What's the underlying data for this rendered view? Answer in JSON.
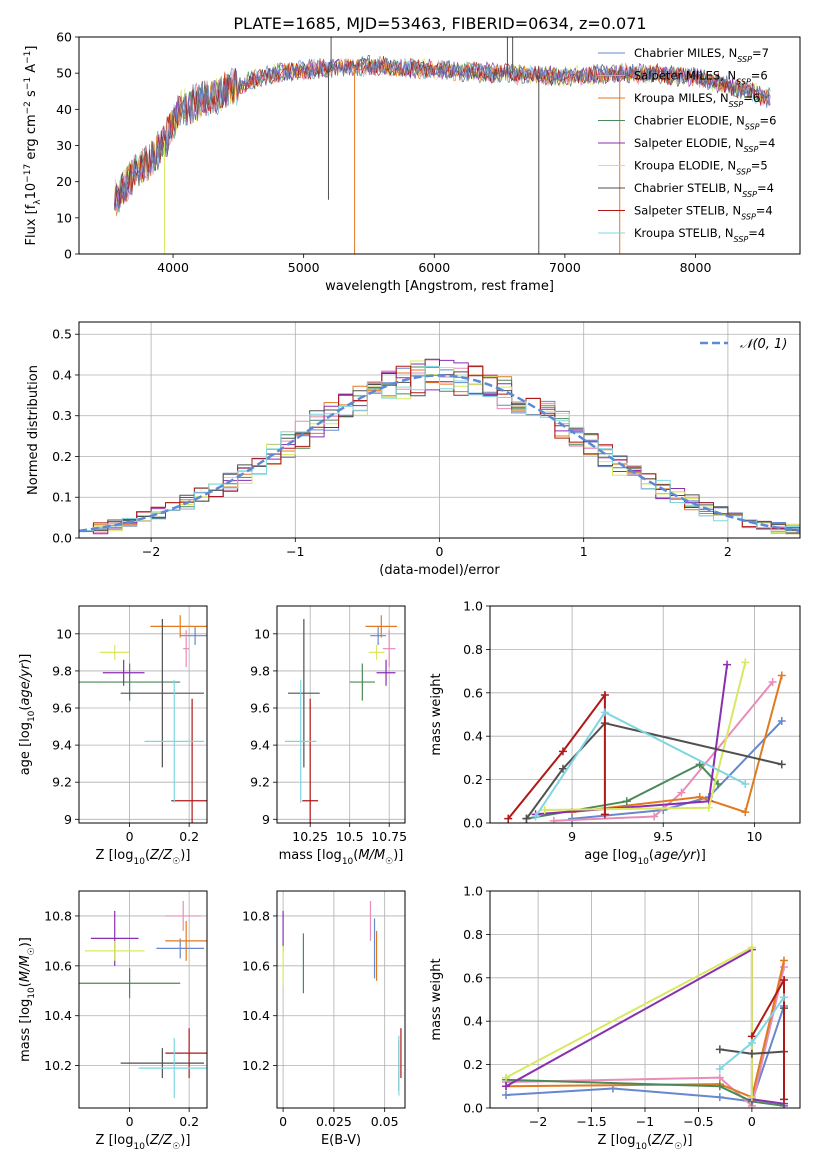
{
  "figure_title": "PLATE=1685, MJD=53463, FIBERID=0634, z=0.071",
  "colors": {
    "series": [
      "#6688cc",
      "#e88cb8",
      "#e07a20",
      "#4a8a58",
      "#8a2fb0",
      "#d9e860",
      "#505050",
      "#b01818",
      "#7fd6e0"
    ],
    "normal_curve": "#5b8ad8",
    "grid": "#b0b0b0"
  },
  "chart_data": [
    {
      "id": "spectrum",
      "type": "line",
      "xlabel": "wavelength [Angstrom, rest frame]",
      "ylabel": "Flux [f_λ10^-17 erg cm^-2 s^-1 A^-1]",
      "xlim": [
        3280,
        8800
      ],
      "ylim": [
        0,
        60
      ],
      "xticks": [
        4000,
        5000,
        6000,
        7000,
        8000
      ],
      "yticks": [
        0,
        10,
        20,
        30,
        40,
        50,
        60
      ],
      "legend_position": "top-right",
      "legend": [
        {
          "base": "Chabrier MILES, N",
          "sub": "SSP",
          "suffix": "=7"
        },
        {
          "base": "Salpeter MILES, N",
          "sub": "SSP",
          "suffix": "=6"
        },
        {
          "base": "Kroupa MILES, N",
          "sub": "SSP",
          "suffix": "=6"
        },
        {
          "base": "Chabrier ELODIE, N",
          "sub": "SSP",
          "suffix": "=6"
        },
        {
          "base": "Salpeter ELODIE, N",
          "sub": "SSP",
          "suffix": "=4"
        },
        {
          "base": "Kroupa ELODIE, N",
          "sub": "SSP",
          "suffix": "=5"
        },
        {
          "base": "Chabrier STELIB, N",
          "sub": "SSP",
          "suffix": "=4"
        },
        {
          "base": "Salpeter STELIB, N",
          "sub": "SSP",
          "suffix": "=4"
        },
        {
          "base": "Kroupa STELIB, N",
          "sub": "SSP",
          "suffix": "=4"
        }
      ],
      "data_x_range": [
        3550,
        8580
      ],
      "envelope": [
        [
          3550,
          15
        ],
        [
          3700,
          22
        ],
        [
          3850,
          27
        ],
        [
          3950,
          32
        ],
        [
          4050,
          40
        ],
        [
          4200,
          42
        ],
        [
          4400,
          45
        ],
        [
          4600,
          48
        ],
        [
          4800,
          50
        ],
        [
          5000,
          51
        ],
        [
          5500,
          52
        ],
        [
          6000,
          51
        ],
        [
          6500,
          50
        ],
        [
          7000,
          49
        ],
        [
          7500,
          50
        ],
        [
          8000,
          49
        ],
        [
          8300,
          46
        ],
        [
          8580,
          43
        ]
      ],
      "spikes": [
        [
          3935,
          0
        ],
        [
          5190,
          15
        ],
        [
          5210,
          62
        ],
        [
          5390,
          0
        ],
        [
          6560,
          62
        ],
        [
          6600,
          62
        ],
        [
          6800,
          0
        ],
        [
          7420,
          0
        ]
      ]
    },
    {
      "id": "residuals",
      "type": "histogram",
      "xlabel": "(data-model)/error",
      "ylabel": "Normed distribution",
      "xlim": [
        -2.5,
        2.5
      ],
      "ylim": [
        0,
        0.53
      ],
      "xticks": [
        -2,
        -1,
        0,
        1,
        2
      ],
      "yticks": [
        0.0,
        0.1,
        0.2,
        0.3,
        0.4,
        0.5
      ],
      "legend_position": "top-right",
      "normal_label": "𝒩(0, 1)",
      "bin_edges_range": [
        -2.5,
        2.5
      ],
      "bins": 50
    },
    {
      "id": "z-age",
      "type": "scatter",
      "xlabel": "Z [log10(Z/Z☉)]",
      "ylabel": "age [log10(age/yr)]",
      "xlim": [
        -0.17,
        0.26
      ],
      "ylim": [
        8.98,
        10.15
      ],
      "xticks": [
        0.0,
        0.2
      ],
      "yticks": [
        9.0,
        9.2,
        9.4,
        9.6,
        9.8,
        10.0
      ],
      "points": [
        {
          "x": 0.22,
          "y": 9.99,
          "xerr": 0.05,
          "yerr": 0.05
        },
        {
          "x": 0.19,
          "y": 9.92,
          "xerr": 0.01,
          "yerr": 0.1
        },
        {
          "x": 0.17,
          "y": 10.04,
          "xerr": 0.1,
          "yerr": 0.06
        },
        {
          "x": 0.0,
          "y": 9.74,
          "xerr": 0.17,
          "yerr": 0.1
        },
        {
          "x": -0.02,
          "y": 9.79,
          "xerr": 0.07,
          "yerr": 0.07
        },
        {
          "x": -0.05,
          "y": 9.9,
          "xerr": 0.05,
          "yerr": 0.04
        },
        {
          "x": 0.11,
          "y": 9.68,
          "xerr": 0.14,
          "yerr": 0.4
        },
        {
          "x": 0.21,
          "y": 9.1,
          "xerr": 0.07,
          "yerr": 0.55
        },
        {
          "x": 0.15,
          "y": 9.42,
          "xerr": 0.1,
          "yerr": 0.33
        }
      ]
    },
    {
      "id": "mass-age",
      "type": "scatter",
      "xlabel": "mass [log10(M/M☉)]",
      "ylabel": "",
      "xlim": [
        10.04,
        10.85
      ],
      "ylim": [
        8.98,
        10.15
      ],
      "xticks": [
        10.25,
        10.5,
        10.75
      ],
      "yticks": [
        9.0,
        9.2,
        9.4,
        9.6,
        9.8,
        10.0
      ],
      "points": [
        {
          "x": 10.68,
          "y": 9.99,
          "xerr": 0.05,
          "yerr": 0.05
        },
        {
          "x": 10.75,
          "y": 9.92,
          "xerr": 0.04,
          "yerr": 0.1
        },
        {
          "x": 10.7,
          "y": 10.04,
          "xerr": 0.1,
          "yerr": 0.06
        },
        {
          "x": 10.58,
          "y": 9.74,
          "xerr": 0.08,
          "yerr": 0.1
        },
        {
          "x": 10.73,
          "y": 9.79,
          "xerr": 0.06,
          "yerr": 0.07
        },
        {
          "x": 10.67,
          "y": 9.9,
          "xerr": 0.05,
          "yerr": 0.04
        },
        {
          "x": 10.21,
          "y": 9.68,
          "xerr": 0.1,
          "yerr": 0.4
        },
        {
          "x": 10.25,
          "y": 9.1,
          "xerr": 0.05,
          "yerr": 0.55
        },
        {
          "x": 10.19,
          "y": 9.42,
          "xerr": 0.1,
          "yerr": 0.33
        }
      ]
    },
    {
      "id": "age-weight",
      "type": "line",
      "xlabel": "age [log10(age/yr)]",
      "ylabel": "mass weight",
      "xlim": [
        8.55,
        10.25
      ],
      "ylim": [
        0,
        1
      ],
      "xticks": [
        9.0,
        9.5,
        10.0
      ],
      "yticks": [
        0.0,
        0.2,
        0.4,
        0.6,
        0.8,
        1.0
      ],
      "series": [
        {
          "x": [
            9.0,
            9.5,
            9.75,
            10.15
          ],
          "y": [
            0.02,
            0.06,
            0.12,
            0.47
          ]
        },
        {
          "x": [
            8.9,
            9.45,
            9.6,
            10.1
          ],
          "y": [
            0.01,
            0.03,
            0.14,
            0.65
          ]
        },
        {
          "x": [
            9.0,
            9.7,
            9.95,
            10.15
          ],
          "y": [
            0.05,
            0.12,
            0.05,
            0.68
          ]
        },
        {
          "x": [
            8.75,
            9.3,
            9.7,
            9.8
          ],
          "y": [
            0.02,
            0.1,
            0.27,
            0.18
          ]
        },
        {
          "x": [
            8.8,
            9.75,
            9.85
          ],
          "y": [
            0.04,
            0.1,
            0.73
          ]
        },
        {
          "x": [
            8.85,
            9.75,
            9.95
          ],
          "y": [
            0.06,
            0.07,
            0.74
          ]
        },
        {
          "x": [
            8.75,
            8.95,
            9.18,
            10.15
          ],
          "y": [
            0.02,
            0.25,
            0.46,
            0.27
          ]
        },
        {
          "x": [
            8.65,
            8.95,
            9.18,
            9.18
          ],
          "y": [
            0.02,
            0.33,
            0.59,
            0.04
          ]
        },
        {
          "x": [
            8.8,
            9.18,
            9.95
          ],
          "y": [
            0.03,
            0.51,
            0.18
          ]
        }
      ]
    },
    {
      "id": "z-mass",
      "type": "scatter",
      "xlabel": "Z [log10(Z/Z☉)]",
      "ylabel": "mass [log10(M/M☉)]",
      "xlim": [
        -0.17,
        0.26
      ],
      "ylim": [
        10.03,
        10.9
      ],
      "xticks": [
        0.0,
        0.2
      ],
      "yticks": [
        10.2,
        10.4,
        10.6,
        10.8
      ],
      "points": [
        {
          "x": 0.17,
          "y": 10.67,
          "xerr": 0.08,
          "yerr": 0.04
        },
        {
          "x": 0.18,
          "y": 10.8,
          "xerr": 0.06,
          "yerr": 0.06
        },
        {
          "x": 0.19,
          "y": 10.7,
          "xerr": 0.07,
          "yerr": 0.08
        },
        {
          "x": 0.0,
          "y": 10.53,
          "xerr": 0.17,
          "yerr": 0.06
        },
        {
          "x": -0.05,
          "y": 10.71,
          "xerr": 0.08,
          "yerr": 0.11
        },
        {
          "x": -0.05,
          "y": 10.66,
          "xerr": 0.1,
          "yerr": 0.04
        },
        {
          "x": 0.11,
          "y": 10.21,
          "xerr": 0.14,
          "yerr": 0.06
        },
        {
          "x": 0.2,
          "y": 10.25,
          "xerr": 0.08,
          "yerr": 0.1
        },
        {
          "x": 0.15,
          "y": 10.19,
          "xerr": 0.12,
          "yerr": 0.12
        }
      ]
    },
    {
      "id": "ebv-mass",
      "type": "scatter",
      "xlabel": "E(B-V)",
      "ylabel": "",
      "xlim": [
        -0.003,
        0.06
      ],
      "ylim": [
        10.03,
        10.9
      ],
      "xticks": [
        0.0,
        0.025,
        0.05
      ],
      "yticks": [
        10.2,
        10.4,
        10.6,
        10.8
      ],
      "points": [
        {
          "x": 0.045,
          "y": 10.67,
          "yerr": 0.12
        },
        {
          "x": 0.043,
          "y": 10.78,
          "yerr": 0.08
        },
        {
          "x": 0.046,
          "y": 10.64,
          "yerr": 0.1
        },
        {
          "x": 0.01,
          "y": 10.61,
          "yerr": 0.12
        },
        {
          "x": 0.0,
          "y": 10.74,
          "yerr": 0.08
        },
        {
          "x": 0.0,
          "y": 10.6,
          "yerr": 0.08
        },
        {
          "x": 0.057,
          "y": 10.2,
          "yerr": 0.1
        },
        {
          "x": 0.058,
          "y": 10.25,
          "yerr": 0.1
        },
        {
          "x": 0.057,
          "y": 10.2,
          "yerr": 0.12
        }
      ]
    },
    {
      "id": "z-weight",
      "type": "line",
      "xlabel": "Z [log10(Z/Z☉)]",
      "ylabel": "mass weight",
      "xlim": [
        -2.45,
        0.45
      ],
      "ylim": [
        0,
        1
      ],
      "xticks": [
        -2.0,
        -1.5,
        -1.0,
        -0.5,
        0.0
      ],
      "yticks": [
        0.0,
        0.2,
        0.4,
        0.6,
        0.8,
        1.0
      ],
      "series": [
        {
          "x": [
            -2.3,
            -1.3,
            -0.3,
            0.0,
            0.3
          ],
          "y": [
            0.06,
            0.09,
            0.05,
            0.03,
            0.47
          ]
        },
        {
          "x": [
            -2.3,
            -0.3,
            0.0,
            0.3
          ],
          "y": [
            0.12,
            0.14,
            0.01,
            0.65
          ]
        },
        {
          "x": [
            -2.3,
            -0.3,
            0.0,
            0.3
          ],
          "y": [
            0.1,
            0.11,
            0.05,
            0.68
          ]
        },
        {
          "x": [
            -2.3,
            -0.3,
            0.0,
            0.3
          ],
          "y": [
            0.13,
            0.1,
            0.03,
            0.01
          ]
        },
        {
          "x": [
            -2.3,
            0.0,
            0.0,
            0.3
          ],
          "y": [
            0.1,
            0.73,
            0.04,
            0.02
          ]
        },
        {
          "x": [
            -2.3,
            0.0,
            0.0
          ],
          "y": [
            0.14,
            0.74,
            0.05
          ]
        },
        {
          "x": [
            -0.3,
            0.0,
            0.3,
            0.3
          ],
          "y": [
            0.27,
            0.25,
            0.26,
            0.46
          ]
        },
        {
          "x": [
            0.0,
            0.3,
            0.3
          ],
          "y": [
            0.33,
            0.59,
            0.04
          ]
        },
        {
          "x": [
            -0.3,
            0.0,
            0.3
          ],
          "y": [
            0.18,
            0.3,
            0.51
          ]
        }
      ]
    }
  ]
}
